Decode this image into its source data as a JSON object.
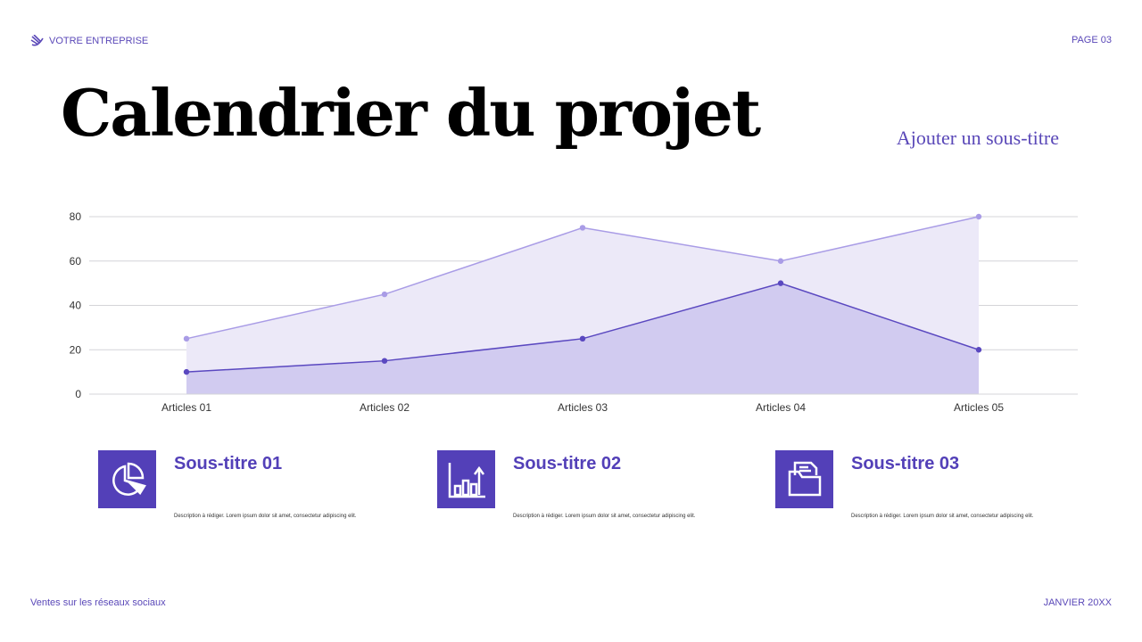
{
  "header": {
    "brand": "VOTRE ENTREPRISE",
    "page": "PAGE 03"
  },
  "title": "Calendrier du projet",
  "subtitle": "Ajouter un sous-titre",
  "colors": {
    "accent": "#5340b8",
    "series_light": "#a99ce6",
    "series_dark": "#5a48c0",
    "area_light": "#ece9f8",
    "area_dark": "#cdc6ee"
  },
  "chart_data": {
    "type": "area",
    "categories": [
      "Articles 01",
      "Articles 02",
      "Articles 03",
      "Articles 04",
      "Articles 05"
    ],
    "series": [
      {
        "values": [
          25,
          45,
          75,
          60,
          80
        ]
      },
      {
        "values": [
          10,
          15,
          25,
          50,
          20
        ]
      }
    ],
    "yticks": [
      "0",
      "20",
      "40",
      "60",
      "80"
    ],
    "ylim": [
      0,
      80
    ],
    "grid": true
  },
  "cards": [
    {
      "icon": "pie-chart-icon",
      "title": "Sous-titre 01",
      "desc": "Description à rédiger. Lorem ipsum dolor sit amet, consectetur adipiscing elit."
    },
    {
      "icon": "bar-chart-growth-icon",
      "title": "Sous-titre 02",
      "desc": "Description à rédiger. Lorem ipsum dolor sit amet, consectetur adipiscing elit."
    },
    {
      "icon": "folder-document-icon",
      "title": "Sous-titre 03",
      "desc": "Description à rédiger. Lorem ipsum dolor sit amet, consectetur adipiscing elit."
    }
  ],
  "footer": {
    "left": "Ventes sur les réseaux sociaux",
    "right": "JANVIER 20XX"
  }
}
